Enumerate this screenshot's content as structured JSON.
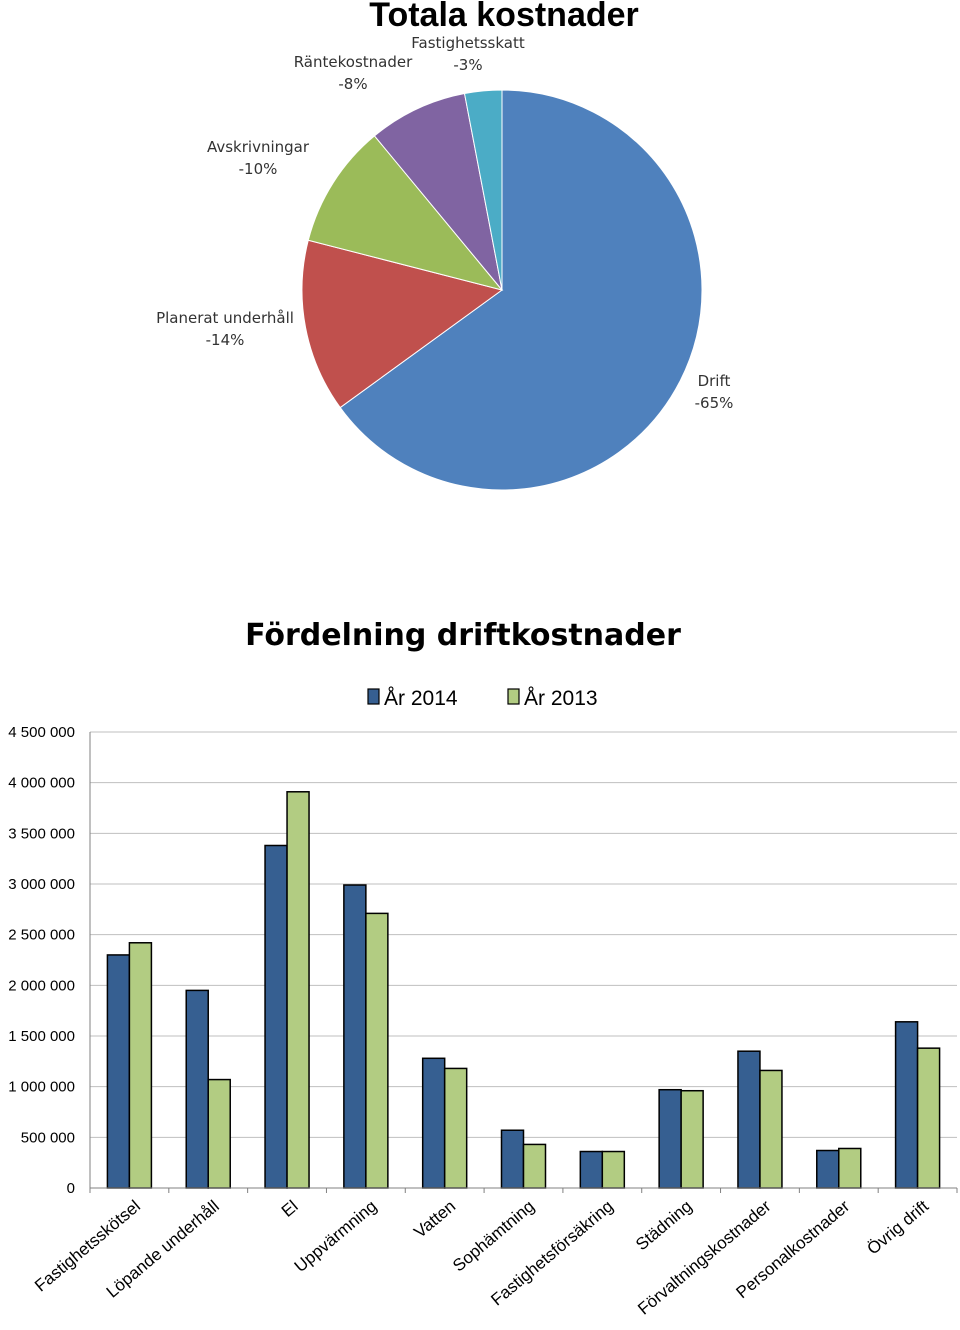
{
  "chart_data": [
    {
      "type": "pie",
      "title": "Totala kostnader",
      "slices": [
        {
          "name": "Drift",
          "label": "-65%",
          "value": 65,
          "color": "#4F81BD"
        },
        {
          "name": "Planerat underhåll",
          "label": "-14%",
          "value": 14,
          "color": "#C0504D"
        },
        {
          "name": "Avskrivningar",
          "label": "-10%",
          "value": 10,
          "color": "#9BBB59"
        },
        {
          "name": "Räntekostnader",
          "label": "-8%",
          "value": 8,
          "color": "#8064A2"
        },
        {
          "name": "Fastighetsskatt",
          "label": "-3%",
          "value": 3,
          "color": "#4BACC6"
        }
      ]
    },
    {
      "type": "bar",
      "title": "Fördelning driftkostnader",
      "categories": [
        "Fastighetsskötsel",
        "Löpande underhåll",
        "El",
        "Uppvärmning",
        "Vatten",
        "Sophämtning",
        "Fastighetsförsäkring",
        "Städning",
        "Förvaltningskostnader",
        "Personalkostnader",
        "Övrig drift"
      ],
      "series": [
        {
          "name": "År 2014",
          "color": "#365F91",
          "values": [
            2300000,
            1950000,
            3380000,
            2990000,
            1280000,
            570000,
            360000,
            970000,
            1350000,
            370000,
            1640000
          ]
        },
        {
          "name": "År 2013",
          "color": "#B2CC82",
          "values": [
            2420000,
            1070000,
            3910000,
            2710000,
            1180000,
            430000,
            360000,
            960000,
            1160000,
            390000,
            1380000
          ]
        }
      ],
      "yticks": [
        "0",
        "500 000",
        "1 000 000",
        "1 500 000",
        "2 000 000",
        "2 500 000",
        "3 000 000",
        "3 500 000",
        "4 000 000",
        "4 500 000"
      ],
      "ylim": [
        0,
        4500000
      ],
      "grid": true,
      "legend": "top"
    }
  ]
}
